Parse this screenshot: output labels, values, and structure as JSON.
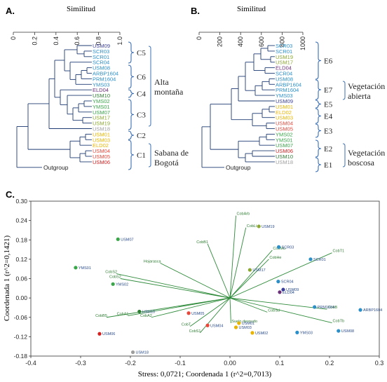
{
  "chart_data": [
    {
      "type": "dendrogram",
      "panel": "A.",
      "axis_label": "Similitud",
      "ticks": [
        "0",
        "0.2",
        "0.4",
        "0.6",
        "0.8",
        "1.0"
      ],
      "leaves": [
        {
          "label": "USM09",
          "color": "#3a3f9a"
        },
        {
          "label": "SCR03",
          "color": "#2b8fc9"
        },
        {
          "label": "SCR01",
          "color": "#2b8fc9"
        },
        {
          "label": "SCR04",
          "color": "#2b8fc9"
        },
        {
          "label": "USM08",
          "color": "#2b8fc9"
        },
        {
          "label": "ARBP1604",
          "color": "#2b8fc9"
        },
        {
          "label": "PRM1604",
          "color": "#2b8fc9"
        },
        {
          "label": "YMS03",
          "color": "#2b8fc9"
        },
        {
          "label": "ELD04",
          "color": "#6b2f7a"
        },
        {
          "label": "USM10",
          "color": "#2e7d32"
        },
        {
          "label": "YMS02",
          "color": "#3aa64a"
        },
        {
          "label": "YMS01",
          "color": "#3aa64a"
        },
        {
          "label": "USM07",
          "color": "#3aa64a"
        },
        {
          "label": "USM17",
          "color": "#8aa832"
        },
        {
          "label": "USM19",
          "color": "#8aa832"
        },
        {
          "label": "USM18",
          "color": "#9e9e9e"
        },
        {
          "label": "USM01",
          "color": "#e8b400"
        },
        {
          "label": "USM03",
          "color": "#e8b400"
        },
        {
          "label": "ELD02",
          "color": "#e8b400"
        },
        {
          "label": "USM04",
          "color": "#e8473a"
        },
        {
          "label": "USM05",
          "color": "#e8473a"
        },
        {
          "label": "USM06",
          "color": "#d32020"
        },
        {
          "label": "Outgroup",
          "color": "#222222"
        }
      ],
      "groups": [
        {
          "label": "C5"
        },
        {
          "label": "C6"
        },
        {
          "label": "C4"
        },
        {
          "label": "C3"
        },
        {
          "label": "C2"
        },
        {
          "label": "C1"
        }
      ],
      "group_titles": [
        {
          "lines": [
            "Alta",
            "montaña"
          ]
        },
        {
          "lines": [
            "Sabana de",
            "Bogotá"
          ]
        }
      ]
    },
    {
      "type": "dendrogram",
      "panel": "B.",
      "axis_label": "Similitud",
      "ticks": [
        "0",
        "200",
        "400",
        "600",
        "800",
        "1000"
      ],
      "leaves": [
        {
          "label": "SCR03",
          "color": "#2b8fc9"
        },
        {
          "label": "SCR01",
          "color": "#2b8fc9"
        },
        {
          "label": "USM19",
          "color": "#8aa832"
        },
        {
          "label": "USM17",
          "color": "#8aa832"
        },
        {
          "label": "ELD04",
          "color": "#6b2f7a"
        },
        {
          "label": "SCR04",
          "color": "#2b8fc9"
        },
        {
          "label": "USM08",
          "color": "#2b8fc9"
        },
        {
          "label": "ARBP1604",
          "color": "#2b8fc9"
        },
        {
          "label": "PRM1604",
          "color": "#2b8fc9"
        },
        {
          "label": "YMS03",
          "color": "#2b8fc9"
        },
        {
          "label": "USM09",
          "color": "#3a3f9a"
        },
        {
          "label": "USM01",
          "color": "#e8b400"
        },
        {
          "label": "ELD02",
          "color": "#e8b400"
        },
        {
          "label": "USM03",
          "color": "#e8b400"
        },
        {
          "label": "USM04",
          "color": "#e8473a"
        },
        {
          "label": "USM05",
          "color": "#e8473a"
        },
        {
          "label": "YMS02",
          "color": "#3aa64a"
        },
        {
          "label": "YMS01",
          "color": "#3aa64a"
        },
        {
          "label": "USM07",
          "color": "#3aa64a"
        },
        {
          "label": "USM06",
          "color": "#d32020"
        },
        {
          "label": "USM10",
          "color": "#2e7d32"
        },
        {
          "label": "USM18",
          "color": "#9e9e9e"
        },
        {
          "label": "Outgroup",
          "color": "#222222"
        }
      ],
      "groups": [
        {
          "label": "E6"
        },
        {
          "label": "E7"
        },
        {
          "label": "E5"
        },
        {
          "label": "E4"
        },
        {
          "label": "E3"
        },
        {
          "label": "E2"
        },
        {
          "label": "E1"
        }
      ],
      "group_titles": [
        {
          "lines": [
            "Vegetación",
            "abierta"
          ]
        },
        {
          "lines": [
            "Vegetación",
            "boscosa"
          ]
        }
      ]
    },
    {
      "type": "scatter",
      "panel": "C.",
      "xlabel": "Stress: 0,0721; Coordenada 1 (r^2=0,7013)",
      "ylabel": "Coordenada 1 (r^2=0,1421)",
      "xlim": [
        -0.4,
        0.3
      ],
      "ylim": [
        -0.18,
        0.3
      ],
      "xticks": [
        "-0.4",
        "-0.3",
        "-0.2",
        "-0.1",
        "0.00",
        "0.1",
        "0.2",
        "0.3"
      ],
      "yticks": [
        "-0.18",
        "-0.12",
        "-0.06",
        "0.00",
        "0.06",
        "0.12",
        "0.18",
        "0.24",
        "0.30"
      ],
      "points": [
        {
          "label": "USM07",
          "x": -0.225,
          "y": 0.182,
          "color": "#3aa64a"
        },
        {
          "label": "YMS01",
          "x": -0.31,
          "y": 0.094,
          "color": "#3aa64a"
        },
        {
          "label": "YMS02",
          "x": -0.235,
          "y": 0.043,
          "color": "#3aa64a"
        },
        {
          "label": "USM10",
          "x": -0.182,
          "y": -0.042,
          "color": "#2e7d32"
        },
        {
          "label": "USM06",
          "x": -0.262,
          "y": -0.111,
          "color": "#d32020"
        },
        {
          "label": "USM18",
          "x": -0.195,
          "y": -0.168,
          "color": "#9e9e9e"
        },
        {
          "label": "USM05",
          "x": -0.083,
          "y": -0.047,
          "color": "#e8473a"
        },
        {
          "label": "USM04",
          "x": -0.045,
          "y": -0.085,
          "color": "#e8473a"
        },
        {
          "label": "USM03",
          "x": 0.012,
          "y": -0.091,
          "color": "#e8b400"
        },
        {
          "label": "USM01",
          "x": 0.018,
          "y": -0.078,
          "color": "#e8b400"
        },
        {
          "label": "USM02",
          "x": 0.045,
          "y": -0.108,
          "color": "#e8b400"
        },
        {
          "label": "USM19",
          "x": 0.058,
          "y": 0.222,
          "color": "#8aa832"
        },
        {
          "label": "USM17",
          "x": 0.04,
          "y": 0.087,
          "color": "#8aa832"
        },
        {
          "label": "SCR03",
          "x": 0.098,
          "y": 0.158,
          "color": "#2b8fc9"
        },
        {
          "label": "SCR01",
          "x": 0.162,
          "y": 0.12,
          "color": "#2b8fc9"
        },
        {
          "label": "SCR04",
          "x": 0.097,
          "y": 0.051,
          "color": "#2b8fc9"
        },
        {
          "label": "USM09",
          "x": 0.107,
          "y": 0.026,
          "color": "#3a3f9a"
        },
        {
          "label": "ELD04",
          "x": 0.1,
          "y": 0.018,
          "color": "#6b2f7a"
        },
        {
          "label": "PRM1604",
          "x": 0.17,
          "y": -0.028,
          "color": "#2b8fc9"
        },
        {
          "label": "ARBP1604",
          "x": 0.262,
          "y": -0.037,
          "color": "#2b8fc9"
        },
        {
          "label": "YMS03",
          "x": 0.135,
          "y": -0.107,
          "color": "#2b8fc9"
        },
        {
          "label": "USM08",
          "x": 0.218,
          "y": -0.102,
          "color": "#2b8fc9"
        }
      ],
      "vectors": [
        {
          "label": "CobArb",
          "x": 0.012,
          "y": 0.255
        },
        {
          "label": "CobLi",
          "x": 0.032,
          "y": 0.218
        },
        {
          "label": "CobB1",
          "x": -0.045,
          "y": 0.168
        },
        {
          "label": "CobMu",
          "x": 0.085,
          "y": 0.148
        },
        {
          "label": "CobHe",
          "x": 0.078,
          "y": 0.12
        },
        {
          "label": "CobT1",
          "x": 0.205,
          "y": 0.14
        },
        {
          "label": "Hojarasca",
          "x": -0.14,
          "y": 0.108
        },
        {
          "label": "CobS2",
          "x": -0.228,
          "y": 0.075
        },
        {
          "label": "CobS2",
          "x": -0.22,
          "y": 0.06
        },
        {
          "label": "CobB5",
          "x": -0.248,
          "y": -0.06
        },
        {
          "label": "CobA1",
          "x": -0.205,
          "y": -0.055
        },
        {
          "label": "CobA2",
          "x": -0.158,
          "y": -0.06
        },
        {
          "label": "CobT",
          "x": -0.08,
          "y": -0.088
        },
        {
          "label": "CobS1",
          "x": -0.06,
          "y": -0.108
        },
        {
          "label": "Suelo desnudo",
          "x": 0.002,
          "y": -0.078
        },
        {
          "label": "CobSd",
          "x": 0.075,
          "y": -0.044
        },
        {
          "label": "CobB",
          "x": 0.195,
          "y": -0.035
        },
        {
          "label": "CobTb",
          "x": 0.205,
          "y": -0.077
        }
      ]
    }
  ]
}
